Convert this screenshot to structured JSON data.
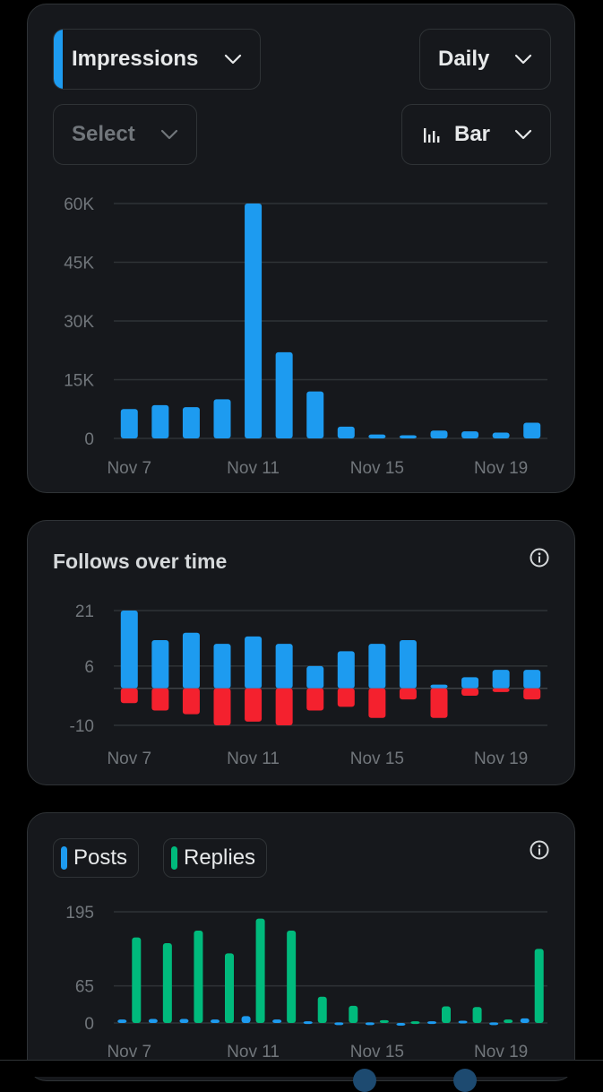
{
  "impressions_card": {
    "metric_select": {
      "label": "Impressions",
      "accent": "#1d9bf0"
    },
    "period_select": {
      "label": "Daily"
    },
    "compare_select": {
      "label": "Select"
    },
    "chart_type_select": {
      "label": "Bar",
      "icon": "bar-chart-icon"
    }
  },
  "follows_card": {
    "title": "Follows over time",
    "info_icon": "info-icon"
  },
  "activity_card": {
    "legend": [
      {
        "label": "Posts",
        "color": "#1d9bf0"
      },
      {
        "label": "Replies",
        "color": "#00ba7c"
      }
    ],
    "info_icon": "info-icon"
  },
  "chart_data": [
    {
      "type": "bar",
      "x_tick_labels": [
        "Nov 7",
        "Nov 11",
        "Nov 15",
        "Nov 19"
      ],
      "y_tick_labels": [
        "0",
        "15K",
        "30K",
        "45K",
        "60K"
      ],
      "ylim": [
        0,
        60000
      ],
      "grid": true,
      "color": "#1d9bf0",
      "categories": [
        "Nov 7",
        "Nov 8",
        "Nov 9",
        "Nov 10",
        "Nov 11",
        "Nov 12",
        "Nov 13",
        "Nov 14",
        "Nov 15",
        "Nov 16",
        "Nov 17",
        "Nov 18",
        "Nov 19",
        "Nov 20"
      ],
      "values": [
        7500,
        8500,
        8000,
        10000,
        60000,
        22000,
        12000,
        3000,
        1000,
        800,
        2000,
        1800,
        1500,
        4000
      ]
    },
    {
      "type": "bar",
      "x_tick_labels": [
        "Nov 7",
        "Nov 11",
        "Nov 15",
        "Nov 19"
      ],
      "y_tick_labels": [
        "-10",
        "6",
        "21"
      ],
      "ylim": [
        -10,
        21
      ],
      "grid": true,
      "categories": [
        "Nov 7",
        "Nov 8",
        "Nov 9",
        "Nov 10",
        "Nov 11",
        "Nov 12",
        "Nov 13",
        "Nov 14",
        "Nov 15",
        "Nov 16",
        "Nov 17",
        "Nov 18",
        "Nov 19",
        "Nov 20"
      ],
      "series": [
        {
          "color": "#1d9bf0",
          "values": [
            21,
            13,
            15,
            12,
            14,
            12,
            6,
            10,
            12,
            13,
            1,
            3,
            5,
            5
          ]
        },
        {
          "color": "#f4212e",
          "values": [
            -4,
            -6,
            -7,
            -10,
            -9,
            -10,
            -6,
            -5,
            -8,
            -3,
            -8,
            -2,
            -1,
            -3
          ]
        }
      ]
    },
    {
      "type": "bar",
      "x_tick_labels": [
        "Nov 7",
        "Nov 11",
        "Nov 15",
        "Nov 19"
      ],
      "y_tick_labels": [
        "0",
        "65",
        "195"
      ],
      "ylim": [
        0,
        195
      ],
      "grid": true,
      "categories": [
        "Nov 7",
        "Nov 8",
        "Nov 9",
        "Nov 10",
        "Nov 11",
        "Nov 12",
        "Nov 13",
        "Nov 14",
        "Nov 15",
        "Nov 16",
        "Nov 17",
        "Nov 18",
        "Nov 19",
        "Nov 20"
      ],
      "series": [
        {
          "name": "Posts",
          "color": "#1d9bf0",
          "values": [
            6,
            7,
            7,
            6,
            12,
            6,
            3,
            1,
            1,
            0,
            3,
            4,
            1,
            8
          ]
        },
        {
          "name": "Replies",
          "color": "#00ba7c",
          "values": [
            150,
            140,
            162,
            122,
            183,
            162,
            46,
            30,
            5,
            3,
            29,
            28,
            6,
            130
          ]
        }
      ]
    }
  ]
}
